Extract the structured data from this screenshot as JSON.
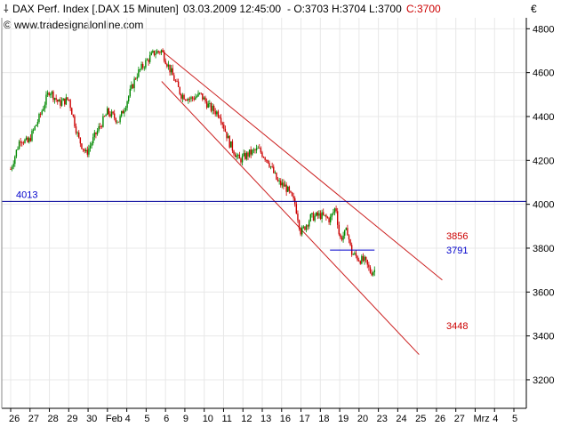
{
  "header": {
    "instrument": "DAX Perf. Index [.DAX  15 Minuten]",
    "datetime": "03.03.2009 12:45:00",
    "ohlc_prefix": "- O:3703 H:3704 L:3700",
    "close": "C:3700",
    "source": "www.tradesignalonline.com",
    "currency": "€"
  },
  "chart_data": {
    "type": "candlestick",
    "interval": "15 Minuten",
    "ylim": [
      3070,
      4850
    ],
    "y_ticks": [
      3200,
      3400,
      3600,
      3800,
      4000,
      4200,
      4400,
      4600,
      4800
    ],
    "x_ticks": [
      "26",
      "27",
      "28",
      "29",
      "30",
      "Feb",
      "4",
      "5",
      "6",
      "9",
      "10",
      "11",
      "12",
      "13",
      "16",
      "17",
      "18",
      "19",
      "20",
      "23",
      "24",
      "25",
      "26",
      "27",
      "Mrz",
      "4",
      "5"
    ],
    "price_path": [
      [
        0,
        4160
      ],
      [
        0.5,
        4300
      ],
      [
        0.9,
        4280
      ],
      [
        1.5,
        4400
      ],
      [
        2,
        4520
      ],
      [
        2.5,
        4460
      ],
      [
        3,
        4480
      ],
      [
        3.5,
        4300
      ],
      [
        3.9,
        4230
      ],
      [
        4.4,
        4320
      ],
      [
        5,
        4420
      ],
      [
        5.6,
        4380
      ],
      [
        6,
        4470
      ],
      [
        6.5,
        4590
      ],
      [
        7,
        4650
      ],
      [
        7.4,
        4690
      ],
      [
        7.8,
        4700
      ],
      [
        8.2,
        4620
      ],
      [
        8.8,
        4500
      ],
      [
        9.3,
        4480
      ],
      [
        9.8,
        4500
      ],
      [
        10.3,
        4440
      ],
      [
        10.8,
        4410
      ],
      [
        11.3,
        4280
      ],
      [
        11.8,
        4200
      ],
      [
        12.3,
        4230
      ],
      [
        12.8,
        4250
      ],
      [
        13.3,
        4200
      ],
      [
        13.8,
        4100
      ],
      [
        14.2,
        4080
      ],
      [
        14.7,
        4000
      ],
      [
        15,
        3870
      ],
      [
        15.5,
        3940
      ],
      [
        16,
        3950
      ],
      [
        16.5,
        3930
      ],
      [
        16.8,
        3990
      ],
      [
        17,
        3840
      ],
      [
        17.4,
        3880
      ],
      [
        17.6,
        3780
      ],
      [
        18,
        3750
      ],
      [
        18.3,
        3740
      ],
      [
        18.6,
        3690
      ],
      [
        18.8,
        3700
      ]
    ],
    "horizontal_lines": [
      {
        "label": "4013",
        "value": 4013,
        "color": "#000099"
      }
    ],
    "channel": {
      "color": "#cc2222",
      "upper": {
        "from": [
          7.8,
          4700
        ],
        "to": [
          22.3,
          3655
        ]
      },
      "lower": {
        "from": [
          7.8,
          4560
        ],
        "to": [
          21.1,
          3315
        ]
      }
    },
    "support_segment": {
      "from": [
        16.5,
        3791
      ],
      "to": [
        18.8,
        3791
      ],
      "color": "#0000cc"
    },
    "annotations": [
      {
        "text": "3856",
        "value": 3856,
        "color": "#cc0000"
      },
      {
        "text": "3791",
        "value": 3791,
        "color": "#0000cc"
      },
      {
        "text": "3448",
        "value": 3448,
        "color": "#cc0000"
      }
    ],
    "colors": {
      "up": "#008800",
      "down": "#cc0000",
      "grid": "#e8e8e8",
      "axis": "#000000"
    }
  }
}
